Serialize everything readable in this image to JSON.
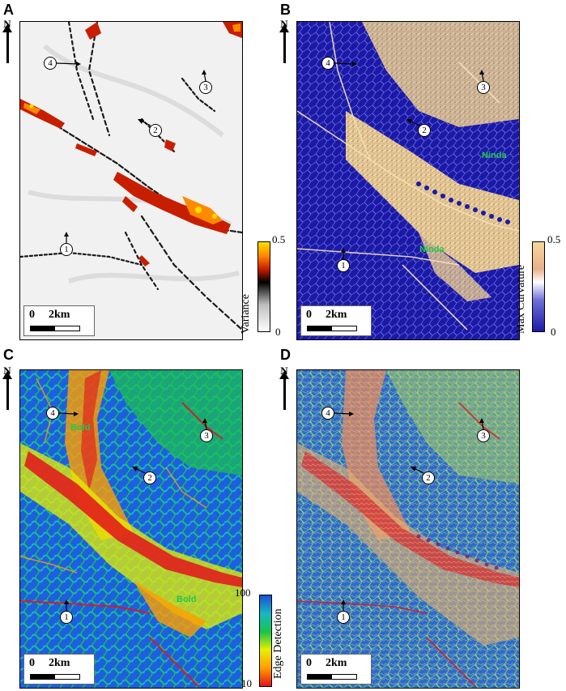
{
  "panels": [
    {
      "letter": "A",
      "colorbar": {
        "label": "Variance",
        "max": "0.5",
        "min": "0"
      }
    },
    {
      "letter": "B",
      "colorbar": {
        "label": "Max Curvature",
        "max": "0.5",
        "min": "0"
      }
    },
    {
      "letter": "C",
      "colorbar": {
        "label": "Edge Detection",
        "max": "100",
        "min": "10"
      }
    },
    {
      "letter": "D"
    }
  ],
  "north_label": "N",
  "scale": {
    "zero": "0",
    "distance": "2km"
  },
  "markers": [
    "1",
    "2",
    "3",
    "4"
  ],
  "notes": {
    "b1": "Ninda",
    "b2": "Ninda",
    "c1": "Bold",
    "c2": "Bold"
  },
  "colors": {
    "variance": [
      "#ffffff",
      "#bdbdbd",
      "#000000",
      "#c81e00",
      "#ff8a00",
      "#ffdf00"
    ],
    "curvature_bg": "#1b1aa8",
    "curvature_line": "#f0d9a0",
    "edge": [
      "#e3131c",
      "#ff9d00",
      "#e8f000",
      "#19c34d",
      "#18b7c4",
      "#1b4fd8"
    ]
  }
}
